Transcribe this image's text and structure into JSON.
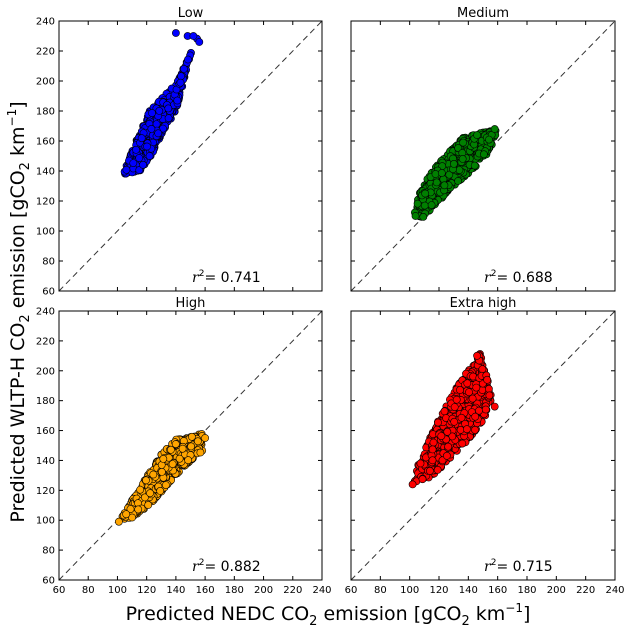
{
  "figure": {
    "ylabel_pre": "Predicted WLTP-H  CO",
    "ylabel_sub": "2",
    "ylabel_mid": " emission [gCO",
    "ylabel_sub2": "2",
    "ylabel_unit": " km",
    "ylabel_sup": "−1",
    "ylabel_end": "]",
    "xlabel_pre": "Predicted NEDC CO",
    "xlabel_sub": "2",
    "xlabel_mid": " emission [gCO",
    "xlabel_sub2": "2",
    "xlabel_unit": " km",
    "xlabel_sup": "−1",
    "xlabel_end": "]"
  },
  "chart_data": [
    {
      "type": "scatter",
      "title": "Low",
      "color": "#0000ff",
      "r2_symbol": "r",
      "r2_exp": "2",
      "r2_value": "= 0.741",
      "xlim": [
        60,
        240
      ],
      "ylim": [
        60,
        240
      ],
      "xticks": [
        60,
        80,
        100,
        120,
        140,
        160,
        180,
        200,
        220,
        240
      ],
      "yticks": [
        60,
        80,
        100,
        120,
        140,
        160,
        180,
        200,
        220,
        240
      ],
      "show_xticklabels": false,
      "show_yticklabels": true,
      "cloud": [
        [
          104,
          138
        ],
        [
          112,
          158
        ],
        [
          122,
          180
        ],
        [
          140,
          198
        ],
        [
          152,
          222
        ],
        [
          156,
          232
        ],
        [
          150,
          218
        ],
        [
          140,
          180
        ],
        [
          132,
          168
        ],
        [
          124,
          152
        ],
        [
          116,
          140
        ]
      ],
      "outliers": [
        [
          140,
          232
        ],
        [
          148,
          230
        ],
        [
          152,
          230
        ],
        [
          156,
          226
        ]
      ]
    },
    {
      "type": "scatter",
      "title": "Medium",
      "color": "#008000",
      "r2_symbol": "r",
      "r2_exp": "2",
      "r2_value": "= 0.688",
      "xlim": [
        60,
        240
      ],
      "ylim": [
        60,
        240
      ],
      "xticks": [
        60,
        80,
        100,
        120,
        140,
        160,
        180,
        200,
        220,
        240
      ],
      "yticks": [
        60,
        80,
        100,
        120,
        140,
        160,
        180,
        200,
        220,
        240
      ],
      "show_xticklabels": false,
      "show_yticklabels": false,
      "cloud": [
        [
          103,
          112
        ],
        [
          106,
          124
        ],
        [
          114,
          138
        ],
        [
          126,
          152
        ],
        [
          136,
          162
        ],
        [
          150,
          166
        ],
        [
          160,
          168
        ],
        [
          154,
          152
        ],
        [
          144,
          142
        ],
        [
          130,
          130
        ],
        [
          118,
          118
        ],
        [
          108,
          108
        ]
      ],
      "outliers": [
        [
          158,
          168
        ],
        [
          146,
          164
        ],
        [
          104,
          110
        ]
      ]
    },
    {
      "type": "scatter",
      "title": "High",
      "color": "#ffa500",
      "r2_symbol": "r",
      "r2_exp": "2",
      "r2_value": "= 0.882",
      "xlim": [
        60,
        240
      ],
      "ylim": [
        60,
        240
      ],
      "xticks": [
        60,
        80,
        100,
        120,
        140,
        160,
        180,
        200,
        220,
        240
      ],
      "yticks": [
        60,
        80,
        100,
        120,
        140,
        160,
        180,
        200,
        220,
        240
      ],
      "show_xticklabels": true,
      "show_yticklabels": true,
      "cloud": [
        [
          102,
          100
        ],
        [
          108,
          110
        ],
        [
          118,
          126
        ],
        [
          130,
          144
        ],
        [
          140,
          154
        ],
        [
          150,
          156
        ],
        [
          158,
          158
        ],
        [
          158,
          146
        ],
        [
          150,
          140
        ],
        [
          138,
          128
        ],
        [
          124,
          112
        ],
        [
          112,
          102
        ]
      ],
      "outliers": [
        [
          101,
          99
        ],
        [
          160,
          155
        ],
        [
          106,
          104
        ]
      ]
    },
    {
      "type": "scatter",
      "title": "Extra high",
      "color": "#ff0000",
      "r2_symbol": "r",
      "r2_exp": "2",
      "r2_value": "= 0.715",
      "xlim": [
        60,
        240
      ],
      "ylim": [
        60,
        240
      ],
      "xticks": [
        60,
        80,
        100,
        120,
        140,
        160,
        180,
        200,
        220,
        240
      ],
      "yticks": [
        60,
        80,
        100,
        120,
        140,
        160,
        180,
        200,
        220,
        240
      ],
      "show_xticklabels": true,
      "show_yticklabels": false,
      "cloud": [
        [
          103,
          125
        ],
        [
          106,
          138
        ],
        [
          116,
          160
        ],
        [
          130,
          186
        ],
        [
          142,
          204
        ],
        [
          148,
          212
        ],
        [
          152,
          200
        ],
        [
          156,
          180
        ],
        [
          150,
          166
        ],
        [
          142,
          156
        ],
        [
          128,
          142
        ],
        [
          114,
          128
        ]
      ],
      "outliers": [
        [
          102,
          124
        ],
        [
          146,
          210
        ],
        [
          158,
          176
        ]
      ]
    }
  ]
}
